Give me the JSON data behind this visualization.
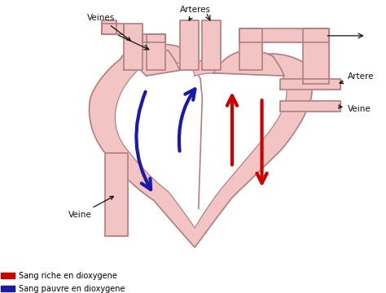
{
  "background_color": "#ffffff",
  "heart_fill": "#f2c4c4",
  "heart_outline": "#b08080",
  "heart_inner": "#ffffff",
  "red_color": "#cc0000",
  "blue_color": "#1a1aaa",
  "text_color": "#111111",
  "legend_red_label": "Sang riche en dioxygene",
  "legend_blue_label": "Sang pauvre en dioxygene",
  "labels": {
    "veines_top": "Veines",
    "arteres_top": "Arteres",
    "artere_right": "Artere",
    "veine_right": "Veine",
    "veine_bottom": "Veine"
  },
  "figsize": [
    4.74,
    3.6
  ],
  "dpi": 100
}
